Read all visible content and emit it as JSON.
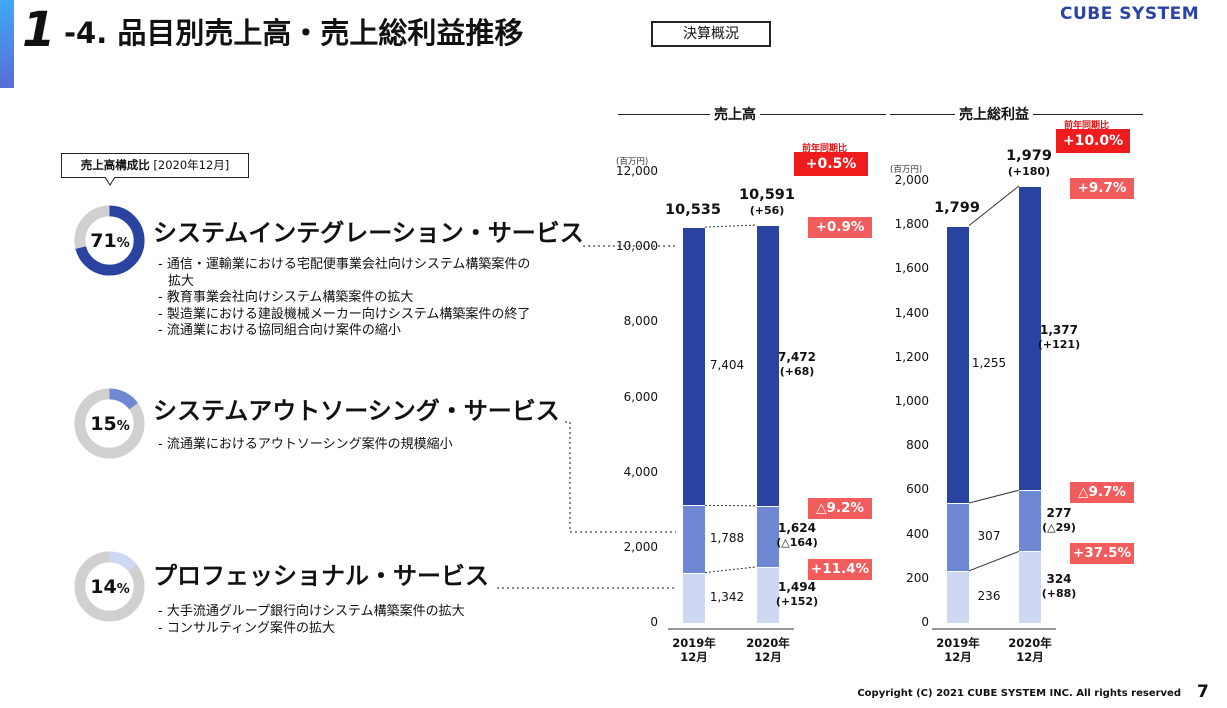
{
  "header": {
    "number": "1",
    "title": "-4. 品目別売上高・売上総利益推移",
    "tag": "決算概況",
    "brand": "CUBE SYSTEM"
  },
  "composition": {
    "label_bold": "売上高構成比",
    "label_rest": "[2020年12月]"
  },
  "services": [
    {
      "name": "システムインテグレーション・サービス",
      "percent_num": "71",
      "percent_unit": "%",
      "share": 0.71,
      "bullets": [
        "- 通信・運輸業における宅配便事業会社向けシステム構築案件の",
        "拡大",
        "- 教育事業会社向けシステム構築案件の拡大",
        "- 製造業における建設機械メーカー向けシステム構築案件の終了",
        "- 流通業における協同組合向け案件の縮小"
      ]
    },
    {
      "name": "システムアウトソーシング・サービス",
      "percent_num": "15",
      "percent_unit": "%",
      "share": 0.15,
      "bullets": [
        "- 流通業におけるアウトソーシング案件の規模縮小"
      ]
    },
    {
      "name": "プロフェッショナル・サービス",
      "percent_num": "14",
      "percent_unit": "%",
      "share": 0.14,
      "bullets": [
        "- 大手流通グループ銀行向けシステム構築案件の拡大",
        "- コンサルティング案件の拡大"
      ]
    }
  ],
  "chart_data": [
    {
      "type": "bar",
      "stacked": true,
      "title": "売上高",
      "unit": "(百万円)",
      "categories": [
        "2019年\n12月",
        "2020年\n12月"
      ],
      "category_lines": [
        [
          "2019年",
          "12月"
        ],
        [
          "2020年",
          "12月"
        ]
      ],
      "ylim": [
        0,
        12000
      ],
      "yticks": [
        "0",
        "2,000",
        "4,000",
        "6,000",
        "8,000",
        "10,000",
        "12,000"
      ],
      "ytick_values": [
        0,
        2000,
        4000,
        6000,
        8000,
        10000,
        12000
      ],
      "series": [
        {
          "name": "プロフェッショナル・サービス",
          "values": [
            1342,
            1494
          ],
          "labels": [
            "1,342",
            "1,494"
          ],
          "change": "(+152)",
          "yoy": "+11.4%"
        },
        {
          "name": "システムアウトソーシング・サービス",
          "values": [
            1788,
            1624
          ],
          "labels": [
            "1,788",
            "1,624"
          ],
          "change": "(△164)",
          "yoy": "△9.2%"
        },
        {
          "name": "システムインテグレーション・サービス",
          "values": [
            7404,
            7472
          ],
          "labels": [
            "7,404",
            "7,472"
          ],
          "change": "(+68)",
          "yoy": "+0.9%"
        }
      ],
      "totals": [
        10535,
        10591
      ],
      "total_labels": [
        "10,535",
        "10,591"
      ],
      "total_change": "(+56)",
      "yoy_label": "前年同期比",
      "yoy_total": "+0.5%",
      "colors": [
        "#cfd8f3",
        "#6f88d4",
        "#2b43a0"
      ]
    },
    {
      "type": "bar",
      "stacked": true,
      "title": "売上総利益",
      "unit": "(百万円)",
      "categories": [
        "2019年\n12月",
        "2020年\n12月"
      ],
      "category_lines": [
        [
          "2019年",
          "12月"
        ],
        [
          "2020年",
          "12月"
        ]
      ],
      "ylim": [
        0,
        2000
      ],
      "yticks": [
        "0",
        "200",
        "400",
        "600",
        "800",
        "1,000",
        "1,200",
        "1,400",
        "1,600",
        "1,800",
        "2,000"
      ],
      "ytick_values": [
        0,
        200,
        400,
        600,
        800,
        1000,
        1200,
        1400,
        1600,
        1800,
        2000
      ],
      "series": [
        {
          "name": "プロフェッショナル・サービス",
          "values": [
            236,
            324
          ],
          "labels": [
            "236",
            "324"
          ],
          "change": "(+88)",
          "yoy": "+37.5%"
        },
        {
          "name": "システムアウトソーシング・サービス",
          "values": [
            307,
            277
          ],
          "labels": [
            "307",
            "277"
          ],
          "change": "(△29)",
          "yoy": "△9.7%"
        },
        {
          "name": "システムインテグレーション・サービス",
          "values": [
            1255,
            1377
          ],
          "labels": [
            "1,255",
            "1,377"
          ],
          "change": "(+121)",
          "yoy": "+9.7%"
        }
      ],
      "totals": [
        1799,
        1979
      ],
      "total_labels": [
        "1,799",
        "1,979"
      ],
      "total_change": "(+180)",
      "yoy_label": "前年同期比",
      "yoy_total": "+10.0%",
      "colors": [
        "#cfd8f3",
        "#6f88d4",
        "#2b43a0"
      ]
    }
  ],
  "footer": {
    "copyright": "Copyright (C) 2021 CUBE SYSTEM INC. All rights reserved",
    "page": "7"
  }
}
